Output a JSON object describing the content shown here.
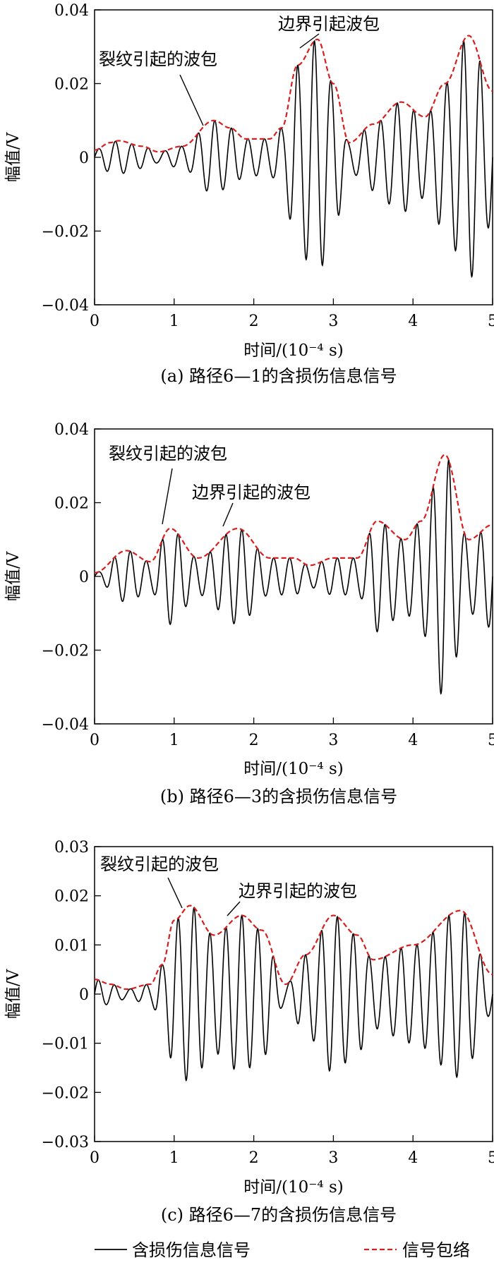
{
  "chart_data": [
    {
      "type": "line",
      "caption": "(a) 路径6—1的含损伤信息信号",
      "xlabel": "时间/(10⁻⁴ s)",
      "ylabel": "幅值/V",
      "xlim": [
        0,
        5
      ],
      "ylim": [
        -0.04,
        0.04
      ],
      "xticks": [
        "0",
        "1",
        "2",
        "3",
        "4",
        "5"
      ],
      "yticks": [
        "0.04",
        "0.02",
        "0",
        "−0.02",
        "−0.04"
      ],
      "annotations": [
        "裂纹引起的波包",
        "边界引起波包"
      ],
      "carrier_cycles": 24,
      "series": [
        {
          "name": "信号包络",
          "x": [
            0,
            0.2,
            0.3,
            0.6,
            0.8,
            1.1,
            1.5,
            1.7,
            1.9,
            2.2,
            2.35,
            2.55,
            2.8,
            3.0,
            3.2,
            3.5,
            3.85,
            4.15,
            4.4,
            4.7,
            5.0
          ],
          "y": [
            0.002,
            0.004,
            0.0045,
            0.003,
            0.0015,
            0.003,
            0.01,
            0.008,
            0.005,
            0.005,
            0.008,
            0.025,
            0.032,
            0.02,
            0.004,
            0.009,
            0.015,
            0.011,
            0.02,
            0.033,
            0.018
          ]
        },
        {
          "name": "含损伤信息信号",
          "derived_from": "信号包络"
        }
      ]
    },
    {
      "type": "line",
      "caption": "(b) 路径6—3的含损伤信息信号",
      "xlabel": "时间/(10⁻⁴ s)",
      "ylabel": "幅值/V",
      "xlim": [
        0,
        5
      ],
      "ylim": [
        -0.04,
        0.04
      ],
      "xticks": [
        "0",
        "1",
        "2",
        "3",
        "4",
        "5"
      ],
      "yticks": [
        "0.04",
        "0.02",
        "0",
        "−0.02",
        "−0.04"
      ],
      "annotations": [
        "裂纹引起的波包",
        "边界引起的波包"
      ],
      "carrier_cycles": 25,
      "series": [
        {
          "name": "信号包络",
          "x": [
            0,
            0.4,
            0.7,
            0.95,
            1.3,
            1.8,
            2.2,
            2.5,
            2.7,
            3.0,
            3.3,
            3.55,
            3.9,
            4.1,
            4.4,
            4.7,
            5.0
          ],
          "y": [
            0.001,
            0.007,
            0.004,
            0.013,
            0.005,
            0.013,
            0.005,
            0.005,
            0.003,
            0.005,
            0.005,
            0.015,
            0.01,
            0.015,
            0.033,
            0.01,
            0.014
          ]
        },
        {
          "name": "含损伤信息信号",
          "derived_from": "信号包络"
        }
      ]
    },
    {
      "type": "line",
      "caption": "(c) 路径6—7的含损伤信息信号",
      "xlabel": "时间/(10⁻⁴ s)",
      "ylabel": "幅值/V",
      "xlim": [
        0,
        5
      ],
      "ylim": [
        -0.03,
        0.03
      ],
      "xticks": [
        "0",
        "1",
        "2",
        "3",
        "4",
        "5"
      ],
      "yticks": [
        "0.03",
        "0.02",
        "0.01",
        "0",
        "−0.01",
        "−0.02",
        "−0.03"
      ],
      "annotations": [
        "裂纹引起的波包",
        "边界引起的波包"
      ],
      "carrier_cycles": 25,
      "series": [
        {
          "name": "信号包络",
          "x": [
            0,
            0.2,
            0.4,
            0.7,
            0.85,
            1.0,
            1.2,
            1.5,
            1.85,
            2.1,
            2.4,
            2.65,
            3.0,
            3.3,
            3.5,
            4.0,
            4.6,
            5.0
          ],
          "y": [
            0.003,
            0.002,
            0.001,
            0.002,
            0.006,
            0.015,
            0.018,
            0.012,
            0.016,
            0.013,
            0.002,
            0.008,
            0.016,
            0.012,
            0.007,
            0.01,
            0.017,
            0.004
          ]
        },
        {
          "name": "含损伤信息信号",
          "derived_from": "信号包络"
        }
      ]
    }
  ],
  "legend": {
    "signal_label": "含损伤信息信号",
    "envelope_label": "信号包络",
    "signal_color": "#000000",
    "envelope_color": "#d62020"
  }
}
